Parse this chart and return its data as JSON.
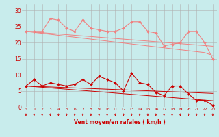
{
  "x": [
    0,
    1,
    2,
    3,
    4,
    5,
    6,
    7,
    8,
    9,
    10,
    11,
    12,
    13,
    14,
    15,
    16,
    17,
    18,
    19,
    20,
    21,
    22,
    23
  ],
  "line1": [
    23.5,
    23.5,
    23.5,
    27.5,
    27.0,
    24.5,
    23.5,
    27.0,
    24.5,
    24.0,
    23.5,
    23.5,
    24.5,
    26.5,
    26.5,
    23.5,
    23.0,
    19.0,
    19.5,
    20.0,
    23.5,
    23.5,
    20.0,
    15.0
  ],
  "line2_trend": [
    23.5,
    23.3,
    23.1,
    22.9,
    22.7,
    22.5,
    22.3,
    22.1,
    21.9,
    21.7,
    21.5,
    21.3,
    21.1,
    20.9,
    20.7,
    20.5,
    20.3,
    20.1,
    19.9,
    19.7,
    19.5,
    19.3,
    19.1,
    18.9
  ],
  "line3_trend": [
    23.5,
    23.2,
    22.9,
    22.6,
    22.3,
    22.0,
    21.7,
    21.4,
    21.1,
    20.8,
    20.5,
    20.2,
    19.9,
    19.6,
    19.3,
    19.0,
    18.7,
    18.4,
    18.1,
    17.8,
    17.5,
    17.2,
    16.9,
    16.0
  ],
  "line4": [
    6.5,
    8.5,
    6.5,
    7.5,
    7.0,
    6.5,
    7.0,
    8.5,
    7.0,
    9.5,
    8.5,
    7.5,
    5.0,
    10.5,
    7.5,
    7.0,
    4.5,
    3.5,
    6.5,
    6.5,
    4.0,
    2.0,
    2.0,
    0.5
  ],
  "line5_trend": [
    6.5,
    6.4,
    6.3,
    6.2,
    6.1,
    6.0,
    5.9,
    5.8,
    5.7,
    5.6,
    5.5,
    5.4,
    5.3,
    5.2,
    5.1,
    5.0,
    4.9,
    4.8,
    4.7,
    4.6,
    4.5,
    4.4,
    4.3,
    4.2
  ],
  "line6_trend": [
    6.5,
    6.3,
    6.1,
    5.9,
    5.7,
    5.5,
    5.3,
    5.1,
    4.9,
    4.7,
    4.5,
    4.3,
    4.1,
    3.9,
    3.7,
    3.5,
    3.3,
    3.1,
    2.9,
    2.7,
    2.5,
    2.3,
    2.1,
    1.9
  ],
  "bg_color": "#c8ecec",
  "grid_color": "#b0b0b0",
  "line_color_light": "#f08080",
  "line_color_dark": "#cc0000",
  "xlabel": "Vent moyen/en rafales ( km/h )",
  "ylabel_ticks": [
    0,
    5,
    10,
    15,
    20,
    25,
    30
  ],
  "xlim": [
    -0.5,
    23.5
  ],
  "ylim": [
    0,
    32
  ]
}
